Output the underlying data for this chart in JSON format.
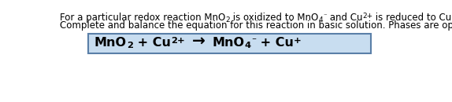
{
  "line1_parts": [
    {
      "text": "For a particular redox reaction MnO",
      "style": "normal"
    },
    {
      "text": "2",
      "style": "sub"
    },
    {
      "text": " is oxidized to MnO",
      "style": "normal"
    },
    {
      "text": "4",
      "style": "sub"
    },
    {
      "text": "⁻",
      "style": "super"
    },
    {
      "text": " and Cu",
      "style": "normal"
    },
    {
      "text": "2+",
      "style": "super"
    },
    {
      "text": " is reduced to Cu",
      "style": "normal"
    },
    {
      "text": "+",
      "style": "super"
    },
    {
      "text": ".",
      "style": "normal"
    }
  ],
  "line2": "Complete and balance the equation for this reaction in basic solution. Phases are optional.",
  "box_facecolor": "#c8ddf0",
  "box_edgecolor": "#5a7fa8",
  "background_color": "#ffffff",
  "text_color": "#000000",
  "desc_fontsize": 8.5,
  "eq_fontsize": 11.5
}
